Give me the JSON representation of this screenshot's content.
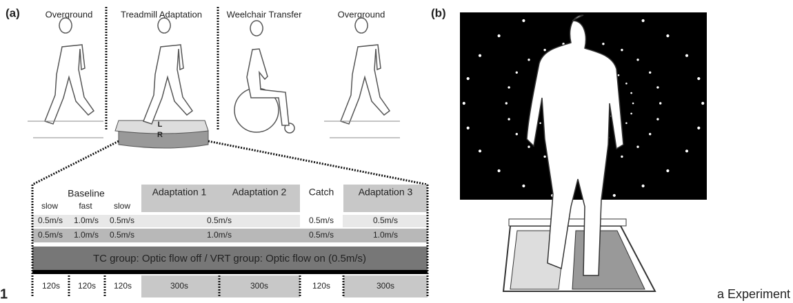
{
  "panel_a": {
    "label": "(a)",
    "stages": [
      "Overground",
      "Treadmill Adaptation",
      "Weelchair Transfer",
      "Overground"
    ],
    "belt_labels": [
      "L",
      "R"
    ],
    "table": {
      "headers": [
        "Baseline",
        "Adaptation 1",
        "Adaptation 2",
        "Catch",
        "Adaptation 3"
      ],
      "baseline_subheaders": [
        "slow",
        "fast",
        "slow"
      ],
      "rows": [
        [
          "0.5m/s",
          "1.0m/s",
          "0.5m/s",
          "0.5m/s",
          "0.5m/s",
          "0.5m/s"
        ],
        [
          "0.5m/s",
          "1.0m/s",
          "0.5m/s",
          "1.0m/s",
          "0.5m/s",
          "1.0m/s"
        ]
      ],
      "group_row": "TC group: Optic flow off / VRT group: Optic flow on (0.5m/s)",
      "durations": [
        "120s",
        "120s",
        "120s",
        "300s",
        "300s",
        "120s",
        "300s"
      ]
    }
  },
  "panel_b": {
    "label": "(b)"
  },
  "figure_number": "1",
  "caption": "a Experiment"
}
